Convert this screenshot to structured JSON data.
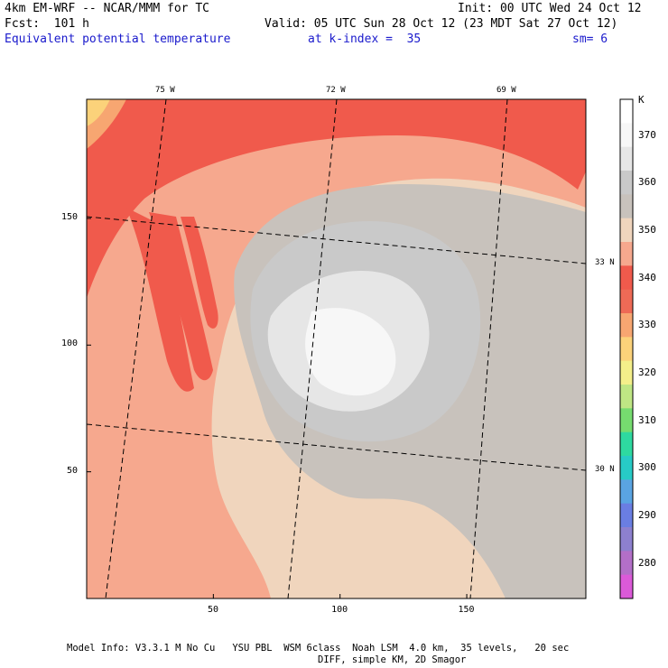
{
  "header": {
    "model": "4km EM-WRF -- NCAR/MMM for TC",
    "init": "Init: 00 UTC Wed 24 Oct 12",
    "fcst": "Fcst:  101 h",
    "valid": "Valid: 05 UTC Sun 28 Oct 12 (23 MDT Sat 27 Oct 12)",
    "field": "Equivalent potential temperature",
    "level": "at k-index =  35",
    "smooth": "sm= 6"
  },
  "axes": {
    "x_ticks": [
      {
        "value": 50,
        "label": "50"
      },
      {
        "value": 100,
        "label": "100"
      },
      {
        "value": 150,
        "label": "150"
      }
    ],
    "y_ticks": [
      {
        "value": 50,
        "label": "50"
      },
      {
        "value": 100,
        "label": "100"
      },
      {
        "value": 150,
        "label": "150"
      }
    ],
    "x_range": [
      0,
      197
    ],
    "y_range": [
      0,
      197
    ],
    "lon_labels": [
      "75 W",
      "72 W",
      "69 W"
    ],
    "lat_labels": [
      "33 N",
      "30 N"
    ]
  },
  "colorbar": {
    "unit": "K",
    "levels": [
      {
        "label": "",
        "color": "#ffffff"
      },
      {
        "label": "370",
        "color": "#f7f7f7"
      },
      {
        "label": "",
        "color": "#e6e6e6"
      },
      {
        "label": "360",
        "color": "#c9c9c9"
      },
      {
        "label": "",
        "color": "#c8c2bc"
      },
      {
        "label": "350",
        "color": "#f0d5bd"
      },
      {
        "label": "",
        "color": "#f6a88e"
      },
      {
        "label": "340",
        "color": "#f05a4c"
      },
      {
        "label": "",
        "color": "#ee6a56"
      },
      {
        "label": "330",
        "color": "#f7a671"
      },
      {
        "label": "",
        "color": "#fbd27a"
      },
      {
        "label": "320",
        "color": "#f4ef8a"
      },
      {
        "label": "",
        "color": "#bfe684"
      },
      {
        "label": "310",
        "color": "#76dc6f"
      },
      {
        "label": "",
        "color": "#2ed9a0"
      },
      {
        "label": "300",
        "color": "#27cbc6"
      },
      {
        "label": "",
        "color": "#5aa4e2"
      },
      {
        "label": "290",
        "color": "#6a7ee2"
      },
      {
        "label": "",
        "color": "#8d80cf"
      },
      {
        "label": "280",
        "color": "#b36fc8"
      },
      {
        "label": "",
        "color": "#db5ad8"
      }
    ]
  },
  "footer": {
    "line1": "Model Info: V3.3.1 M No Cu   YSU PBL  WSM 6class  Noah LSM  4.0 km,  35 levels,   20 sec",
    "line2": "DIFF, simple KM, 2D Smagor"
  }
}
